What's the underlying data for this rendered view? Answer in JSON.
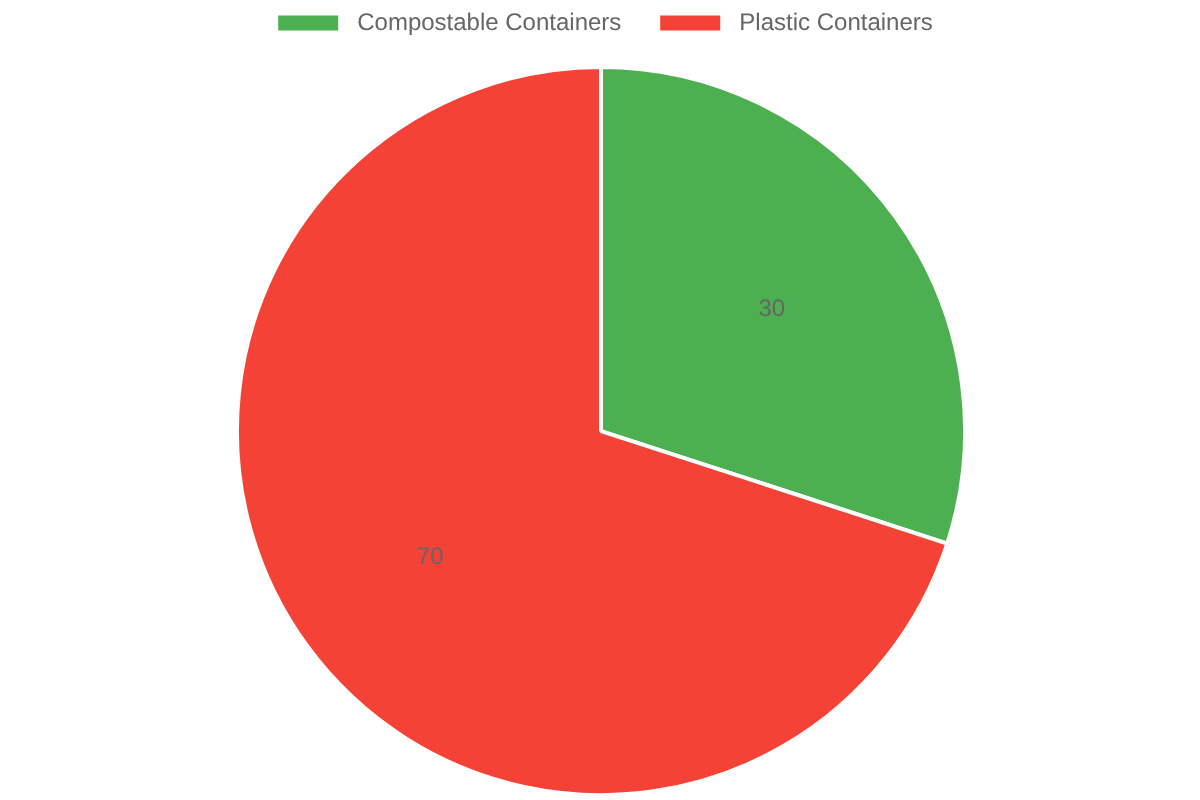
{
  "chart_data": {
    "type": "pie",
    "categories": [
      "Compostable Containers",
      "Plastic Containers"
    ],
    "values": [
      30,
      70
    ],
    "colors": [
      "#4caf50",
      "#f44336"
    ],
    "data_labels": true,
    "legend": "top"
  }
}
